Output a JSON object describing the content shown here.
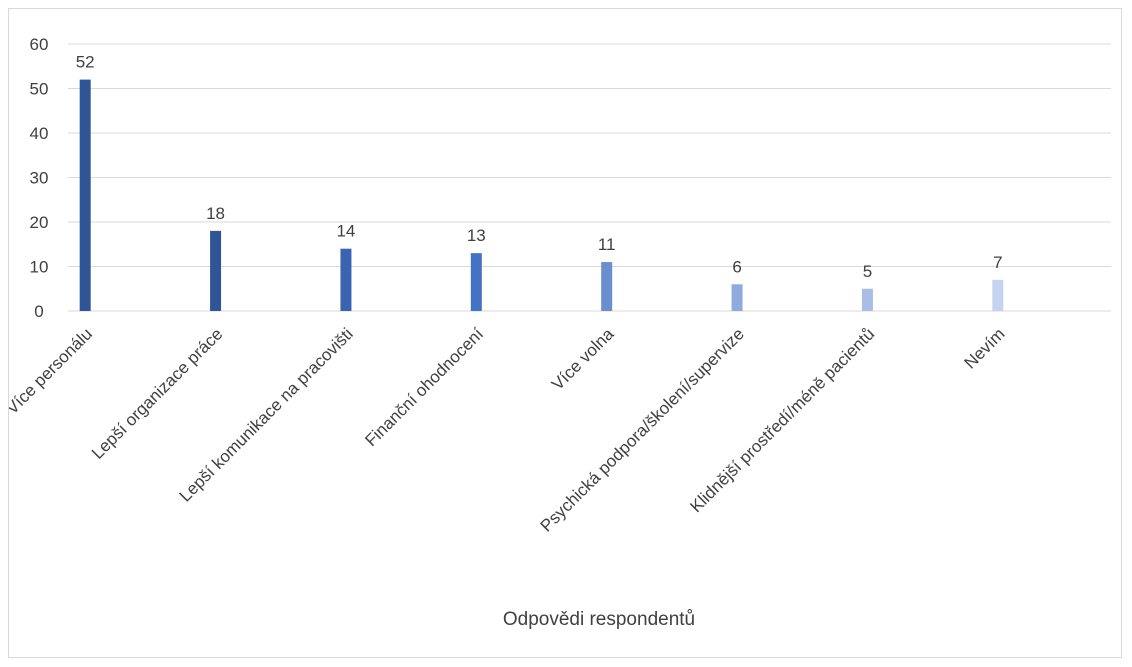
{
  "chart_data": {
    "type": "bar",
    "categories": [
      "Více personálu",
      "Lepší organizace práce",
      "Lepší komunikace na pracovišti",
      "Finanční ohodnocení",
      "Více volna",
      "Psychická podpora/školení/supervize",
      "Klidnější prostředí/méně pacientů",
      "Nevím"
    ],
    "values": [
      52,
      18,
      14,
      13,
      11,
      6,
      5,
      7
    ],
    "colors": [
      "#2f5597",
      "#2f5597",
      "#3a64b0",
      "#4472c4",
      "#6a8fd0",
      "#8faadc",
      "#a9bde6",
      "#c5d3ef"
    ],
    "title": "",
    "xlabel": "Odpovědi respondentů",
    "ylabel": "",
    "ylim": [
      0,
      60
    ],
    "yticks": [
      0,
      10,
      20,
      30,
      40,
      50,
      60
    ],
    "grid": true,
    "legend": "none",
    "data_labels": true
  }
}
